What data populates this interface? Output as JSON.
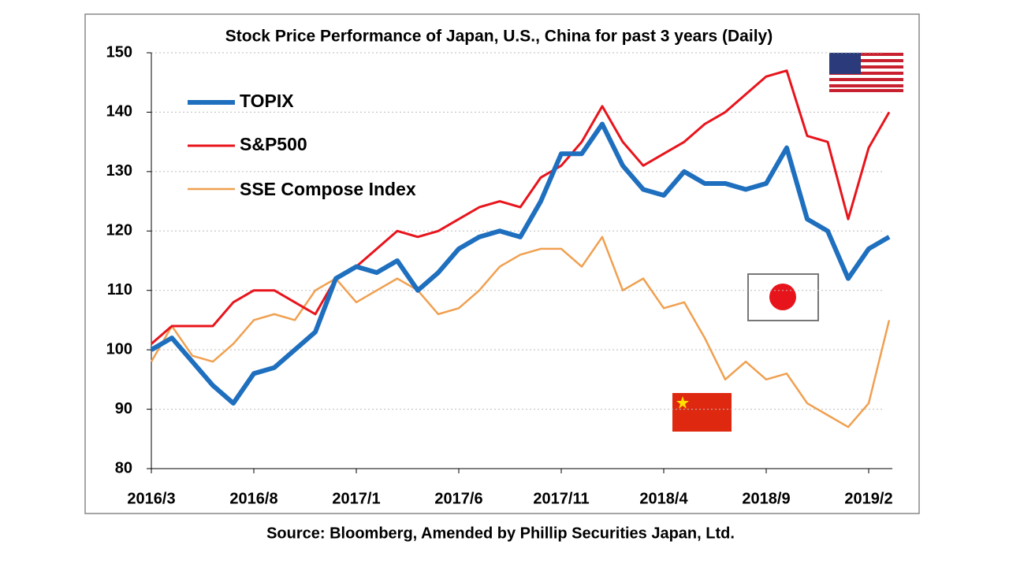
{
  "chart_data": {
    "type": "line",
    "title": "Stock Price Performance of Japan, U.S., China for past 3 years (Daily)",
    "source": "Source: Bloomberg, Amended by Phillip Securities Japan, Ltd.",
    "x": [
      "2016/3",
      "2016/4",
      "2016/5",
      "2016/6",
      "2016/7",
      "2016/8",
      "2016/9",
      "2016/10",
      "2016/11",
      "2016/12",
      "2017/1",
      "2017/2",
      "2017/3",
      "2017/4",
      "2017/5",
      "2017/6",
      "2017/7",
      "2017/8",
      "2017/9",
      "2017/10",
      "2017/11",
      "2017/12",
      "2018/1",
      "2018/2",
      "2018/3",
      "2018/4",
      "2018/5",
      "2018/6",
      "2018/7",
      "2018/8",
      "2018/9",
      "2018/10",
      "2018/11",
      "2018/12",
      "2019/1",
      "2019/2",
      "2019/3"
    ],
    "xticks": [
      "2016/3",
      "2016/8",
      "2017/1",
      "2017/6",
      "2017/11",
      "2018/4",
      "2018/9",
      "2019/2"
    ],
    "ylim": [
      80,
      150
    ],
    "yticks": [
      80,
      90,
      100,
      110,
      120,
      130,
      140,
      150
    ],
    "grid": true,
    "series": [
      {
        "name": "SSE Compose Index",
        "color": "#f0a050",
        "values": [
          98,
          104,
          99,
          98,
          101,
          105,
          106,
          105,
          110,
          112,
          108,
          110,
          112,
          110,
          106,
          107,
          110,
          114,
          116,
          117,
          117,
          114,
          119,
          110,
          112,
          107,
          108,
          102,
          95,
          98,
          95,
          96,
          91,
          89,
          87,
          91,
          105
        ]
      },
      {
        "name": "S&P500",
        "color": "#e8141c",
        "values": [
          101,
          104,
          104,
          104,
          108,
          110,
          110,
          108,
          106,
          112,
          114,
          117,
          120,
          119,
          120,
          122,
          124,
          125,
          124,
          129,
          131,
          135,
          141,
          135,
          131,
          133,
          135,
          138,
          140,
          143,
          146,
          147,
          136,
          135,
          122,
          134,
          140
        ]
      },
      {
        "name": "TOPIX",
        "color": "#1f6fbf",
        "values": [
          100,
          102,
          98,
          94,
          91,
          96,
          97,
          100,
          103,
          112,
          114,
          113,
          115,
          110,
          113,
          117,
          119,
          120,
          119,
          125,
          133,
          133,
          138,
          131,
          127,
          126,
          130,
          128,
          128,
          127,
          128,
          134,
          122,
          120,
          112,
          117,
          119
        ]
      }
    ]
  }
}
